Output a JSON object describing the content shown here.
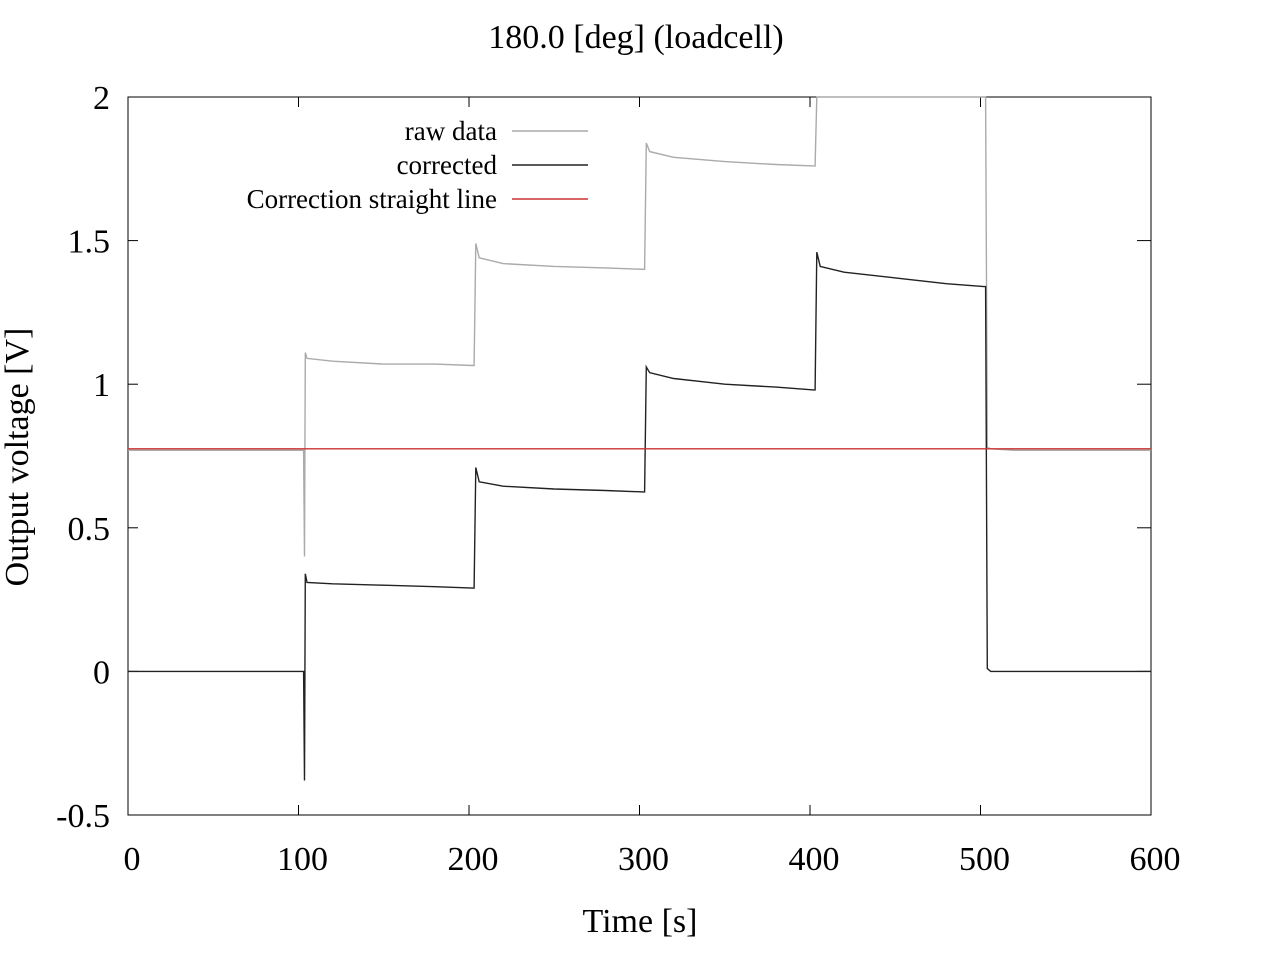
{
  "chart_data": {
    "type": "line",
    "title": "180.0 [deg] (loadcell)",
    "xlabel": "Time [s]",
    "ylabel": "Output voltage [V]",
    "xlim": [
      0,
      600
    ],
    "ylim": [
      -0.5,
      2
    ],
    "xticks": [
      0,
      100,
      200,
      300,
      400,
      500,
      600
    ],
    "xtick_labels": [
      "0",
      "100",
      "200",
      "300",
      "400",
      "500",
      "600"
    ],
    "yticks": [
      -0.5,
      0,
      0.5,
      1,
      1.5,
      2
    ],
    "ytick_labels": [
      "-0.5",
      "0",
      "0.5",
      "1",
      "1.5",
      "2"
    ],
    "grid": false,
    "legend_position": "top-left",
    "series": [
      {
        "name": "raw data",
        "color": "#aaaaaa",
        "x": [
          0,
          103,
          103.5,
          104,
          105,
          120,
          150,
          180,
          202,
          203,
          204,
          206,
          220,
          250,
          280,
          302,
          303,
          304,
          306,
          320,
          350,
          380,
          402,
          403,
          404,
          406,
          420,
          450,
          480,
          502,
          503,
          504,
          506,
          520,
          550,
          580,
          600
        ],
        "y": [
          0.77,
          0.77,
          0.4,
          1.11,
          1.09,
          1.08,
          1.07,
          1.07,
          1.065,
          1.065,
          1.49,
          1.44,
          1.42,
          1.41,
          1.405,
          1.4,
          1.4,
          1.84,
          1.81,
          1.79,
          1.775,
          1.765,
          1.76,
          1.76,
          2.0,
          2.0,
          2.0,
          2.0,
          2.0,
          2.0,
          2.0,
          0.78,
          0.775,
          0.77,
          0.77,
          0.77,
          0.77
        ]
      },
      {
        "name": "corrected",
        "color": "#222222",
        "x": [
          0,
          103,
          103.5,
          104,
          105,
          120,
          150,
          180,
          202,
          203,
          204,
          206,
          220,
          250,
          280,
          302,
          303,
          304,
          306,
          320,
          350,
          380,
          402,
          403,
          404,
          406,
          420,
          450,
          480,
          502,
          503,
          504,
          506,
          520,
          550,
          580,
          600
        ],
        "y": [
          0,
          0,
          -0.38,
          0.34,
          0.31,
          0.305,
          0.3,
          0.295,
          0.29,
          0.29,
          0.71,
          0.66,
          0.645,
          0.635,
          0.63,
          0.625,
          0.625,
          1.06,
          1.04,
          1.02,
          1.0,
          0.99,
          0.98,
          0.98,
          1.46,
          1.41,
          1.39,
          1.37,
          1.35,
          1.34,
          1.34,
          0.01,
          0.0,
          0.0,
          0.0,
          0.0,
          0.0
        ]
      },
      {
        "name": "Correction straight line",
        "color": "#cc3333",
        "x": [
          0,
          600
        ],
        "y": [
          0.775,
          0.775
        ]
      }
    ]
  }
}
